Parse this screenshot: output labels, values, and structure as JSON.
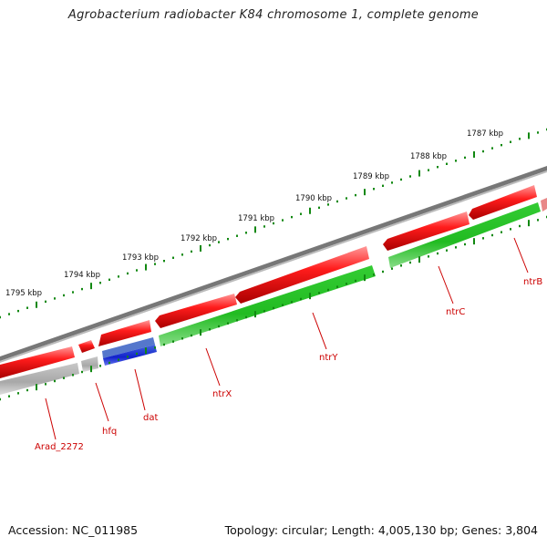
{
  "title": "Agrobacterium radiobacter K84 chromosome 1, complete genome",
  "accession": "Accession: NC_011985",
  "summary": "Topology: circular; Length: 4,005,130 bp; Genes: 3,804",
  "colors": {
    "backbone": "#6e6e6e",
    "forward_gene": "#ee0000",
    "reverse_gene": "#22bb22",
    "trna": "#2233dd",
    "pseudo": "#b4b4b4",
    "tick": "#118811",
    "label": "#cc0000"
  },
  "scale_labels": [
    "1795 kbp",
    "1794 kbp",
    "1793 kbp",
    "1792 kbp",
    "1791 kbp",
    "1790 kbp",
    "1789 kbp",
    "1788 kbp",
    "1787 kbp"
  ],
  "gene_labels": [
    "Arad_2272",
    "hfq",
    "dat",
    "ntrX",
    "ntrY",
    "ntrC",
    "ntrB"
  ]
}
